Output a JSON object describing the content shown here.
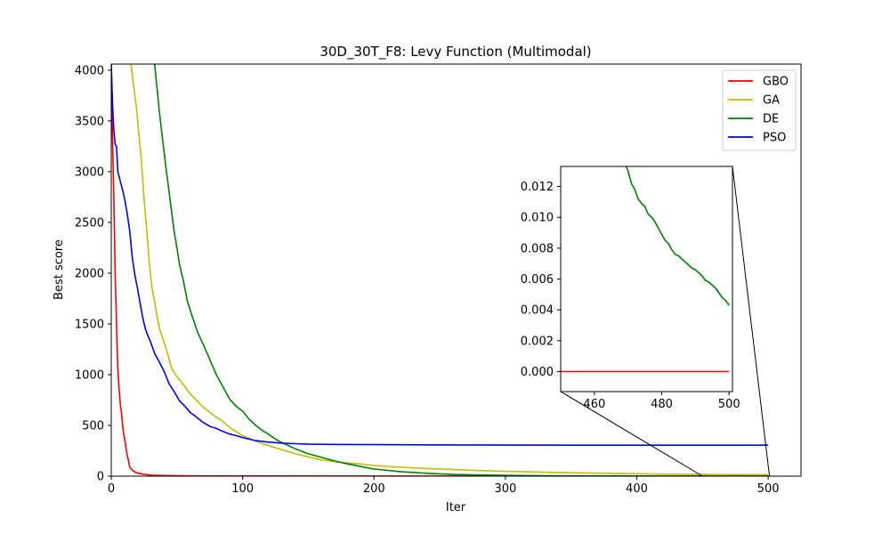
{
  "chart_data": {
    "type": "line",
    "title": "30D_30T_F8: Levy Function (Multimodal)",
    "xlabel": "Iter",
    "ylabel": "Best score",
    "xlim": [
      0,
      525
    ],
    "ylim": [
      0,
      4060
    ],
    "xticks": [
      0,
      100,
      200,
      300,
      400,
      500
    ],
    "yticks": [
      0,
      500,
      1000,
      1500,
      2000,
      2500,
      3000,
      3500,
      4000
    ],
    "grid": false,
    "legend_position": "top-right",
    "series": [
      {
        "name": "GBO",
        "color": "#ff0000",
        "x": [
          0,
          1,
          2,
          3,
          4,
          5,
          6,
          7,
          8,
          9,
          10,
          11,
          12,
          13,
          14,
          16,
          18,
          20,
          25,
          30,
          40,
          60,
          100,
          200,
          300,
          400,
          500
        ],
        "y": [
          4060,
          3300,
          2700,
          2000,
          1500,
          1050,
          850,
          700,
          600,
          450,
          380,
          300,
          220,
          160,
          90,
          60,
          40,
          30,
          18,
          10,
          6,
          3,
          2,
          1,
          0.5,
          0.2,
          0
        ]
      },
      {
        "name": "GA",
        "color": "#bfbf00",
        "x": [
          15,
          17,
          19,
          21,
          23,
          25,
          27,
          29,
          31,
          33,
          35,
          37,
          40,
          43,
          46,
          50,
          55,
          60,
          65,
          70,
          75,
          80,
          85,
          90,
          95,
          100,
          110,
          120,
          130,
          140,
          150,
          160,
          175,
          190,
          200,
          220,
          240,
          260,
          280,
          300,
          340,
          380,
          420,
          460,
          500
        ],
        "y": [
          4060,
          3850,
          3650,
          3370,
          3100,
          2720,
          2420,
          2100,
          1850,
          1720,
          1560,
          1440,
          1330,
          1200,
          1060,
          980,
          900,
          810,
          745,
          680,
          630,
          580,
          540,
          480,
          440,
          400,
          345,
          300,
          260,
          220,
          190,
          160,
          135,
          120,
          105,
          88,
          75,
          65,
          55,
          47,
          36,
          27,
          20,
          16,
          14
        ]
      },
      {
        "name": "DE",
        "color": "#008000",
        "x": [
          33,
          35,
          37,
          40,
          42,
          44,
          46,
          48,
          50,
          52,
          55,
          58,
          62,
          66,
          70,
          75,
          80,
          85,
          90,
          95,
          100,
          105,
          110,
          115,
          120,
          125,
          130,
          140,
          150,
          160,
          170,
          180,
          190,
          200,
          220,
          240,
          260,
          280,
          300,
          340,
          380,
          420,
          460,
          500
        ],
        "y": [
          4060,
          3800,
          3550,
          3220,
          3000,
          2800,
          2600,
          2400,
          2250,
          2080,
          1920,
          1720,
          1560,
          1410,
          1300,
          1150,
          1000,
          880,
          760,
          690,
          640,
          560,
          500,
          450,
          410,
          365,
          330,
          270,
          220,
          185,
          150,
          120,
          95,
          70,
          45,
          28,
          17,
          11,
          7,
          3,
          1.5,
          0.5,
          0.1,
          0.004
        ]
      },
      {
        "name": "PSO",
        "color": "#0000ff",
        "x": [
          0,
          1,
          2,
          3,
          4,
          5,
          6,
          7,
          8,
          9,
          10,
          12,
          14,
          16,
          18,
          20,
          22,
          24,
          26,
          28,
          30,
          33,
          36,
          40,
          44,
          48,
          52,
          56,
          60,
          65,
          70,
          75,
          80,
          85,
          90,
          95,
          100,
          110,
          120,
          130,
          140,
          150,
          175,
          200,
          250,
          300,
          400,
          500
        ],
        "y": [
          4060,
          3650,
          3400,
          3270,
          3250,
          3000,
          2950,
          2900,
          2850,
          2800,
          2740,
          2600,
          2420,
          2160,
          1980,
          1850,
          1700,
          1560,
          1450,
          1380,
          1320,
          1210,
          1140,
          1040,
          910,
          830,
          740,
          690,
          630,
          580,
          530,
          490,
          470,
          440,
          415,
          400,
          380,
          350,
          335,
          325,
          320,
          315,
          312,
          310,
          308,
          306,
          305,
          305
        ]
      }
    ],
    "inset": {
      "xlim": [
        450,
        501
      ],
      "ylim": [
        -0.0013,
        0.0133
      ],
      "xticks": [
        460,
        480,
        500
      ],
      "yticks": [
        0.0,
        0.002,
        0.004,
        0.006,
        0.008,
        0.01,
        0.012
      ],
      "ytick_labels": [
        "0.000",
        "0.002",
        "0.004",
        "0.006",
        "0.008",
        "0.010",
        "0.012"
      ],
      "series": [
        {
          "name": "DE",
          "color": "#008000",
          "x": [
            469,
            470,
            471,
            472,
            473,
            474,
            475,
            476,
            477,
            478,
            479,
            480,
            481,
            482,
            483,
            484,
            485,
            486,
            487,
            488,
            489,
            490,
            491,
            492,
            493,
            494,
            495,
            496,
            497,
            498,
            499,
            500
          ],
          "y": [
            0.0135,
            0.013,
            0.0122,
            0.0118,
            0.0112,
            0.0109,
            0.0107,
            0.0102,
            0.01,
            0.0097,
            0.0093,
            0.0089,
            0.0085,
            0.0083,
            0.0079,
            0.0076,
            0.0075,
            0.0073,
            0.0071,
            0.0069,
            0.0067,
            0.0066,
            0.0064,
            0.0062,
            0.0059,
            0.0058,
            0.0056,
            0.0054,
            0.0051,
            0.0048,
            0.0046,
            0.0043
          ]
        },
        {
          "name": "GBO",
          "color": "#ff0000",
          "x": [
            450,
            500
          ],
          "y": [
            0.0,
            0.0
          ]
        }
      ]
    }
  }
}
